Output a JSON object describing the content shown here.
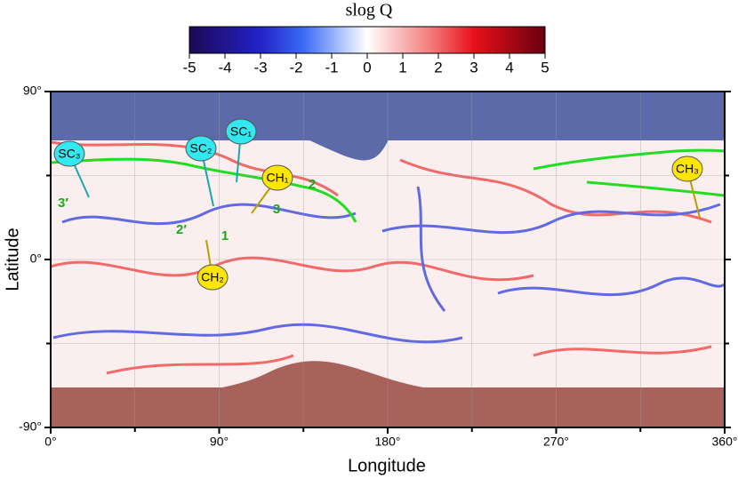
{
  "chart_data": {
    "type": "heatmap",
    "title": "slog Q",
    "clim": [
      -5,
      5
    ],
    "cticks": [
      -5,
      -4,
      -3,
      -2,
      -1,
      0,
      1,
      2,
      3,
      4,
      5
    ],
    "xlabel": "Longitude",
    "ylabel": "Latitude",
    "xlim": [
      0,
      360
    ],
    "xticks": [
      {
        "value": 0,
        "label": "0°"
      },
      {
        "value": 90,
        "label": "90°"
      },
      {
        "value": 180,
        "label": "180°"
      },
      {
        "value": 270,
        "label": "270°"
      },
      {
        "value": 360,
        "label": "360°"
      }
    ],
    "x_minor_ticks": [
      45,
      135,
      225,
      315
    ],
    "ylim": [
      -90,
      90
    ],
    "yticks": [
      {
        "value": 90,
        "label": "90°"
      },
      {
        "value": 0,
        "label": "0°"
      },
      {
        "value": -90,
        "label": "-90°"
      }
    ],
    "y_minor_ticks": [
      45,
      -45
    ],
    "grid": true,
    "annotations": [
      {
        "text": "SC₁",
        "color": "#33e8ee"
      },
      {
        "text": "SC₂",
        "color": "#33e8ee"
      },
      {
        "text": "SC₃",
        "color": "#33e8ee"
      },
      {
        "text": "CH₁",
        "color": "#ffe600"
      },
      {
        "text": "CH₂",
        "color": "#ffe600"
      },
      {
        "text": "CH₃",
        "color": "#ffe600"
      },
      {
        "text": "2",
        "color": "#1aa81a"
      },
      {
        "text": "3",
        "color": "#1aa81a"
      },
      {
        "text": "1",
        "color": "#1aa81a"
      },
      {
        "text": "2′",
        "color": "#1aa81a"
      },
      {
        "text": "3′",
        "color": "#1aa81a"
      }
    ]
  }
}
